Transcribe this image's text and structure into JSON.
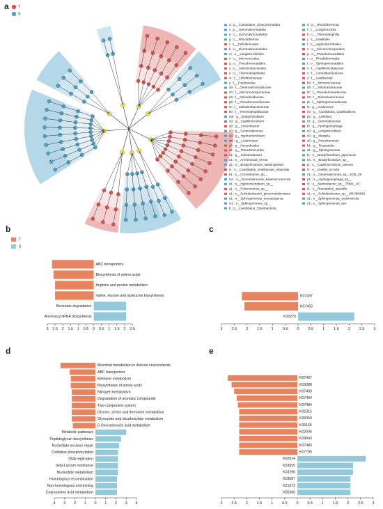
{
  "chart_data": [
    {
      "type": "cladogram",
      "panel": "a",
      "legend": [
        {
          "name": "T",
          "color": "#d9534f"
        },
        {
          "name": "S",
          "color": "#4fa3c7"
        }
      ],
      "taxa": [
        {
          "label": "a : p__Candidatus_Cloacimonadota",
          "color": "#4fa3c7"
        },
        {
          "label": "c : p__Gemmatimonadota",
          "color": "#4fa3c7"
        },
        {
          "label": "e : c__Gemmatimonadetes",
          "color": "#4fa3c7"
        },
        {
          "label": "g : c__Rhodothermia",
          "color": "#4fa3c7"
        },
        {
          "label": "i : o__Cellvibrionales",
          "color": "#d9534f"
        },
        {
          "label": "k : o__Gemmatimonadales",
          "color": "#4fa3c7"
        },
        {
          "label": "m : o__Longimicrobiales",
          "color": "#4fa3c7"
        },
        {
          "label": "o : o__Micrococcales",
          "color": "#d9534f"
        },
        {
          "label": "q : o__Pseudomonadales",
          "color": "#d9534f"
        },
        {
          "label": "s : o__Solirubrobacterales",
          "color": "#d9534f"
        },
        {
          "label": "u : o__Thermoleophilales",
          "color": "#d9534f"
        },
        {
          "label": "w : f__Cellvibrionaceae",
          "color": "#d9534f"
        },
        {
          "label": "y : f__Frankiaceae",
          "color": "#4fa3c7"
        },
        {
          "label": "a0 : f__Gemmatimonadaceae",
          "color": "#4fa3c7"
        },
        {
          "label": "c0 : f__Micromonosporaceae",
          "color": "#d9534f"
        },
        {
          "label": "e0 : f__Nocardioidaceae",
          "color": "#d9534f"
        },
        {
          "label": "g0 : f__Pseudonocardiaceae",
          "color": "#d9534f"
        },
        {
          "label": "i0 : f__Solirubrobacteraceae",
          "color": "#d9534f"
        },
        {
          "label": "k0 : f__Thermoleophilaceae",
          "color": "#d9534f"
        },
        {
          "label": "m0 : g__Bradyrhizobium",
          "color": "#4fa3c7"
        },
        {
          "label": "o0 : g__Capillimicrobium",
          "color": "#d9534f"
        },
        {
          "label": "q0 : g__Conexibacter",
          "color": "#d9534f"
        },
        {
          "label": "s0 : g__Gemmatimonas",
          "color": "#4fa3c7"
        },
        {
          "label": "u0 : g__Hyphomicrobium",
          "color": "#4fa3c7"
        },
        {
          "label": "w0 : g__Luteimonas",
          "color": "#4fa3c7"
        },
        {
          "label": "y0 : g__Nocardioides",
          "color": "#d9534f"
        },
        {
          "label": "a1 : g__Pseudonocardia",
          "color": "#d9534f"
        },
        {
          "label": "c1 : g__Solirubrobacter",
          "color": "#d9534f"
        },
        {
          "label": "e1 : s__Arenimonas_terrae",
          "color": "#4fa3c7"
        },
        {
          "label": "g1 : s__Bradyrhizobium_lawningenses",
          "color": "#4fa3c7"
        },
        {
          "label": "i1 : s__Candidatus_Gaiellaceae_maunatai",
          "color": "#d9534f"
        },
        {
          "label": "k1 : s__Conexibacter_sp__",
          "color": "#d9534f"
        },
        {
          "label": "m1 : s__Gemmatimonas_kalamazoonensis",
          "color": "#4fa3c7"
        },
        {
          "label": "o1 : s__Hyphomicrobium_sp__",
          "color": "#4fa3c7"
        },
        {
          "label": "q1 : s__Polaromonas_sp__",
          "color": "#d9534f"
        },
        {
          "label": "s1 : s__Solirubrobacter_ginsenosidimutans",
          "color": "#d9534f"
        },
        {
          "label": "u1 : s__Sphingomonas_aracaeogenia",
          "color": "#4fa3c7"
        },
        {
          "label": "w1 : s__Sphingomonas_sp__",
          "color": "#4fa3c7"
        },
        {
          "label": "b : p__Candidatus_Eisenbacteria",
          "color": "#4fa3c7"
        },
        {
          "label": "d : p__Rhodothermota",
          "color": "#4fa3c7"
        },
        {
          "label": "f : c__Longimicrobia",
          "color": "#4fa3c7"
        },
        {
          "label": "h : c__Thermoleophilia",
          "color": "#d9534f"
        },
        {
          "label": "j : o__Gaiellales",
          "color": "#d9534f"
        },
        {
          "label": "l : o__Hyphomicrobiales",
          "color": "#4fa3c7"
        },
        {
          "label": "n : o__Micromonosporales",
          "color": "#d9534f"
        },
        {
          "label": "p : o__Pseudonocardiales",
          "color": "#d9534f"
        },
        {
          "label": "r : o__Rhodothermales",
          "color": "#4fa3c7"
        },
        {
          "label": "t : o__Sphingomonadales",
          "color": "#4fa3c7"
        },
        {
          "label": "v : f__Capillimicrobiaceae",
          "color": "#d9534f"
        },
        {
          "label": "x : f__Conexibacteraceae",
          "color": "#d9534f"
        },
        {
          "label": "z : f__Gaiellaceae",
          "color": "#d9534f"
        },
        {
          "label": "b0 : f__Micrococcaceae",
          "color": "#d9534f"
        },
        {
          "label": "d0 : f__Nitrobacteraceae",
          "color": "#4fa3c7"
        },
        {
          "label": "f0 : f__Pseudomonadaceae",
          "color": "#d9534f"
        },
        {
          "label": "h0 : f__Rubrobacteraceae",
          "color": "#d9534f"
        },
        {
          "label": "j0 : f__Sphingomonadaceae",
          "color": "#4fa3c7"
        },
        {
          "label": "l0 : g__Acidovorax",
          "color": "#d9534f"
        },
        {
          "label": "n0 : g__Candidatus_Gaiellasilicea",
          "color": "#d9534f"
        },
        {
          "label": "p0 : g__Cellvibrio",
          "color": "#d9534f"
        },
        {
          "label": "r0 : g__Gemmatimonas",
          "color": "#4fa3c7"
        },
        {
          "label": "t0 : g__Hydrogenophaga",
          "color": "#d9534f"
        },
        {
          "label": "v0 : g__Longimicrobium",
          "color": "#4fa3c7"
        },
        {
          "label": "x0 : g__Massilia",
          "color": "#d9534f"
        },
        {
          "label": "z0 : g__Pseudomonas",
          "color": "#d9534f"
        },
        {
          "label": "b1 : g__Roseateles",
          "color": "#d9534f"
        },
        {
          "label": "d1 : g__Sphingomonas",
          "color": "#4fa3c7"
        },
        {
          "label": "f1 : s__Bradyrhizobium_japonicum",
          "color": "#4fa3c7"
        },
        {
          "label": "h1 : s__Bradyrhizobium_sp__",
          "color": "#4fa3c7"
        },
        {
          "label": "j1 : s__Capillimicrobium_parvum",
          "color": "#d9534f"
        },
        {
          "label": "l1 : s__Gaiella_occulta",
          "color": "#d9534f"
        },
        {
          "label": "n1 : s__Gemmatimonas_sp__SG8_28",
          "color": "#4fa3c7"
        },
        {
          "label": "p1 : s__Hydrogenophaga_sp__",
          "color": "#d9534f"
        },
        {
          "label": "r1 : s__Marinobacter_sp__TRM1_10",
          "color": "#d9534f"
        },
        {
          "label": "t1 : s__Roseateles_aquatilis",
          "color": "#d9534f"
        },
        {
          "label": "v1 : s__Solirubrobacter_sp__URHD0082",
          "color": "#d9534f"
        },
        {
          "label": "x1 : s__Sphingomonas_sediminicola",
          "color": "#4fa3c7"
        },
        {
          "label": "z1 : s__Sphingomonas_taxi",
          "color": "#4fa3c7"
        }
      ]
    },
    {
      "type": "diverging_bar",
      "panel": "b",
      "legend": [
        {
          "name": "T",
          "color": "#e8835f"
        },
        {
          "name": "S",
          "color": "#93c9da"
        }
      ],
      "categories": [
        "ABC transporters",
        "Biosynthesis of amino acids",
        "Arginine and proline metabolism",
        "Valine, leucine and isoleucine biosynthesis",
        "Benzoate degradation",
        "Aminoacyl-tRNA biosynthesis"
      ],
      "values": [
        -2.7,
        -2.6,
        -2.5,
        -2.5,
        2.1,
        2.1
      ],
      "colors": [
        "#e8835f",
        "#e8835f",
        "#e8835f",
        "#e8835f",
        "#93c9da",
        "#93c9da"
      ],
      "xlim": [
        -3,
        2.5
      ],
      "xticks": [
        {
          "value": -3,
          "label": "3"
        },
        {
          "value": -2.5,
          "label": "2.5"
        },
        {
          "value": -2,
          "label": "2"
        },
        {
          "value": -1.5,
          "label": "1.5"
        },
        {
          "value": -1,
          "label": "1"
        },
        {
          "value": -0.5,
          "label": "0.5"
        },
        0,
        0.5,
        1,
        1.5,
        2,
        2.5
      ]
    },
    {
      "type": "diverging_bar",
      "panel": "c",
      "categories": [
        "K07497",
        "K07493",
        "K20276"
      ],
      "values": [
        -2.2,
        -2.1,
        2.2
      ],
      "colors": [
        "#e8835f",
        "#e8835f",
        "#93c9da"
      ],
      "xlim": [
        -3,
        3
      ],
      "xticks": [
        {
          "value": -3,
          "label": "3"
        },
        {
          "value": -2.5,
          "label": "2.5"
        },
        {
          "value": -2,
          "label": "2"
        },
        {
          "value": -1.5,
          "label": "1.5"
        },
        {
          "value": -1,
          "label": "1"
        },
        {
          "value": -0.5,
          "label": "0.5"
        },
        0,
        0.5,
        1,
        1.5,
        2,
        2.5,
        3
      ]
    },
    {
      "type": "diverging_bar",
      "panel": "d",
      "categories": [
        "Microbial metabolism in diverse environments",
        "ABC transporters",
        "Methane metabolism",
        "Biosynthesis of amino acids",
        "Nitrogen metabolism",
        "Degradation of aromatic compounds",
        "Two-component system",
        "Glycine, serine and threonine metabolism",
        "Glyoxylate and dicarboxylate metabolism",
        "2-Oxocarboxylic acid metabolism",
        "Metabolic pathways",
        "Peptidoglycan biosynthesis",
        "Nucleotide excision repair",
        "Oxidative phosphorylation",
        "DNA replication",
        "beta-Lactam resistance",
        "Nucleotide metabolism",
        "Homologous recombination",
        "Non-homologous end-joining",
        "Cyanoamino acid metabolism"
      ],
      "values": [
        -3.4,
        -2.5,
        -2.4,
        -2.4,
        -2.3,
        -2.3,
        -2.3,
        -2.3,
        -2.3,
        -2.2,
        3.0,
        2.5,
        2.3,
        2.2,
        2.2,
        2.2,
        2.2,
        2.1,
        2.1,
        2.1
      ],
      "colors": [
        "#e8835f",
        "#e8835f",
        "#e8835f",
        "#e8835f",
        "#e8835f",
        "#e8835f",
        "#e8835f",
        "#e8835f",
        "#e8835f",
        "#e8835f",
        "#93c9da",
        "#93c9da",
        "#93c9da",
        "#93c9da",
        "#93c9da",
        "#93c9da",
        "#93c9da",
        "#93c9da",
        "#93c9da",
        "#93c9da"
      ],
      "xlim": [
        -4,
        4
      ],
      "xticks": [
        {
          "value": -4,
          "label": "4"
        },
        {
          "value": -3,
          "label": "3"
        },
        {
          "value": -2,
          "label": "2"
        },
        {
          "value": -1,
          "label": "1"
        },
        0,
        1,
        2,
        3,
        4
      ]
    },
    {
      "type": "diverging_bar",
      "panel": "e",
      "categories": [
        "K07497",
        "K03088",
        "K07493",
        "K07494",
        "K07484",
        "K02315",
        "K00059",
        "K06165",
        "K02035",
        "K09043",
        "K07483",
        "K07795",
        "K02014",
        "K03655",
        "K03296",
        "K03587",
        "K21572",
        "K05366"
      ],
      "values": [
        -2.75,
        -2.6,
        -2.5,
        -2.4,
        -2.35,
        -2.3,
        -2.3,
        -2.3,
        -2.3,
        -2.3,
        -2.3,
        -2.3,
        2.7,
        2.2,
        2.2,
        2.1,
        2.1,
        2.1
      ],
      "colors": [
        "#e8835f",
        "#e8835f",
        "#e8835f",
        "#e8835f",
        "#e8835f",
        "#e8835f",
        "#e8835f",
        "#e8835f",
        "#e8835f",
        "#e8835f",
        "#e8835f",
        "#e8835f",
        "#93c9da",
        "#93c9da",
        "#93c9da",
        "#93c9da",
        "#93c9da",
        "#93c9da"
      ],
      "xlim": [
        -3,
        3
      ],
      "xticks": [
        {
          "value": -3,
          "label": "3"
        },
        {
          "value": -2.5,
          "label": "2.5"
        },
        {
          "value": -2,
          "label": "2"
        },
        {
          "value": -1.5,
          "label": "1.5"
        },
        {
          "value": -1,
          "label": "1"
        },
        {
          "value": -0.5,
          "label": "0.5"
        },
        0,
        0.5,
        1,
        1.5,
        2,
        2.5,
        3
      ]
    }
  ]
}
